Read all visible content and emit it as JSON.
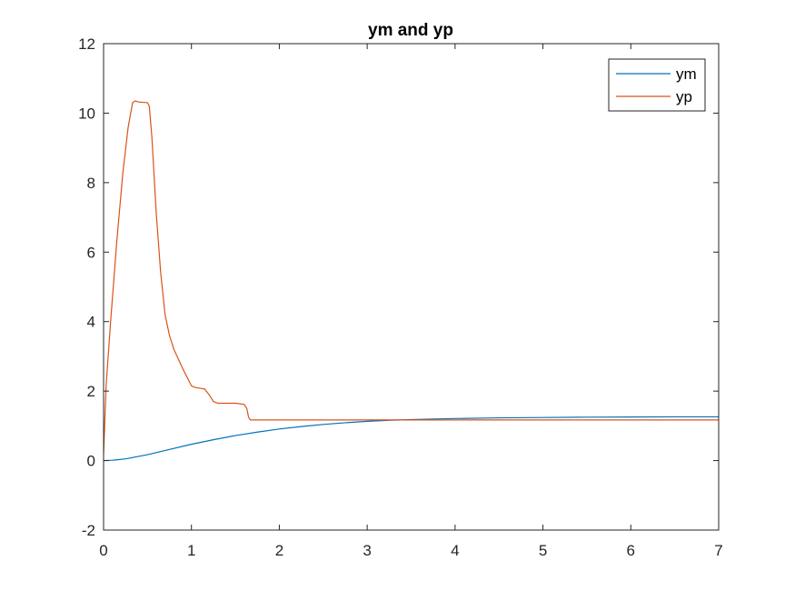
{
  "chart_data": {
    "type": "line",
    "title": "ym and yp",
    "xlabel": "",
    "ylabel": "",
    "xlim": [
      0,
      7
    ],
    "ylim": [
      -2,
      12
    ],
    "xticks": [
      0,
      1,
      2,
      3,
      4,
      5,
      6,
      7
    ],
    "yticks": [
      -2,
      0,
      2,
      4,
      6,
      8,
      10,
      12
    ],
    "grid": false,
    "legend_position": "top-right",
    "series": [
      {
        "name": "ym",
        "color": "#0072BD",
        "x": [
          0,
          0.1,
          0.25,
          0.5,
          0.75,
          1.0,
          1.25,
          1.5,
          1.75,
          2.0,
          2.25,
          2.5,
          2.75,
          3.0,
          3.25,
          3.5,
          4.0,
          4.5,
          5.0,
          5.5,
          6.0,
          6.5,
          7.0
        ],
        "y": [
          0,
          0.01,
          0.05,
          0.17,
          0.32,
          0.47,
          0.6,
          0.72,
          0.82,
          0.91,
          0.98,
          1.04,
          1.09,
          1.13,
          1.16,
          1.18,
          1.21,
          1.23,
          1.24,
          1.25,
          1.255,
          1.26,
          1.26
        ]
      },
      {
        "name": "yp",
        "color": "#D95319",
        "x": [
          0,
          0.03,
          0.08,
          0.15,
          0.22,
          0.28,
          0.33,
          0.36,
          0.4,
          0.5,
          0.52,
          0.55,
          0.6,
          0.65,
          0.7,
          0.75,
          0.8,
          0.9,
          1.0,
          1.05,
          1.1,
          1.15,
          1.2,
          1.25,
          1.3,
          1.4,
          1.5,
          1.6,
          1.63,
          1.65,
          1.67,
          1.7,
          2.0,
          2.5,
          3.0,
          3.5,
          4.0,
          4.5,
          5.0,
          5.5,
          6.0,
          6.5,
          7.0
        ],
        "y": [
          0.2,
          2.2,
          4.0,
          6.3,
          8.3,
          9.6,
          10.3,
          10.35,
          10.32,
          10.3,
          10.2,
          9.3,
          7.1,
          5.4,
          4.2,
          3.6,
          3.2,
          2.65,
          2.15,
          2.1,
          2.08,
          2.06,
          1.9,
          1.7,
          1.65,
          1.65,
          1.65,
          1.62,
          1.5,
          1.25,
          1.17,
          1.17,
          1.17,
          1.17,
          1.17,
          1.17,
          1.17,
          1.17,
          1.17,
          1.17,
          1.17,
          1.17,
          1.17
        ]
      }
    ]
  }
}
